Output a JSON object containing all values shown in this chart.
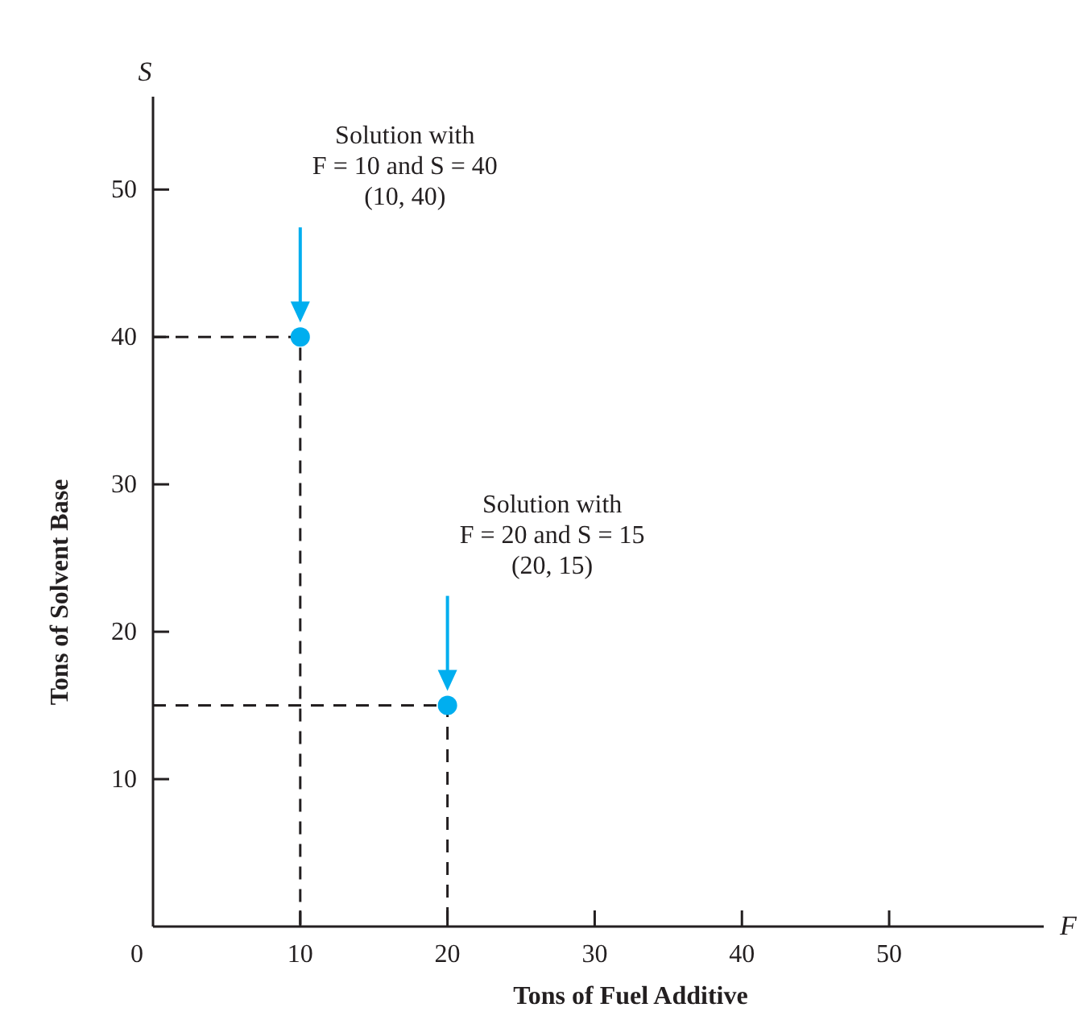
{
  "chart_data": {
    "type": "scatter",
    "xlabel": "Tons of Fuel Additive",
    "ylabel": "Tons of Solvent Base",
    "xlim": [
      0,
      60.5
    ],
    "ylim": [
      0,
      56.3
    ],
    "xticks": [
      0,
      10,
      20,
      30,
      40,
      50
    ],
    "yticks": [
      10,
      20,
      30,
      40,
      50
    ],
    "grid": false,
    "series": [
      {
        "type": "line",
        "color": "#231f20",
        "x": [
          0,
          10,
          10
        ],
        "values": [
          40,
          40,
          0
        ],
        "line_style": "dashed"
      },
      {
        "type": "line",
        "color": "#231f20",
        "x": [
          0,
          20,
          20
        ],
        "values": [
          15,
          15,
          0
        ],
        "line_style": "dashed"
      },
      {
        "color": "#00aeef",
        "x": [
          10,
          20
        ],
        "values": [
          40,
          15
        ],
        "marker": "circle"
      }
    ],
    "annotations": [
      "Solution with\nF = 10 and S = 40\n(10, 40)",
      "Solution with\nF = 20 and S = 15\n(20, 15)",
      "S",
      "F"
    ]
  }
}
